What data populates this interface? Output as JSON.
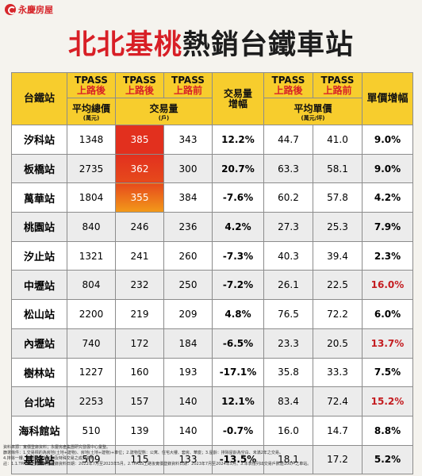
{
  "brand": {
    "logo_text": "永慶房屋"
  },
  "title": {
    "part1": "北北基桃",
    "part2": "熱銷台鐵車站"
  },
  "header": {
    "station": "台鐵站",
    "tpass_after": "TPASS",
    "tpass_after_sub": "上路後",
    "tpass_before": "TPASS",
    "tpass_before_sub": "上路前",
    "avg_total_price": "平均總價",
    "avg_total_price_unit": "(萬元)",
    "volume": "交易量",
    "volume_unit": "(戶)",
    "volume_growth": "交易量",
    "volume_growth_2": "增幅",
    "avg_unit_price": "平均單價",
    "avg_unit_price_unit": "(萬元/坪)",
    "unit_price_growth": "單價增幅"
  },
  "colors": {
    "accent_red": "#d81f26",
    "header_yellow": "#f7cd2d",
    "heat_high": "#e2301e",
    "heat_low": "#f39a1a"
  },
  "rows": [
    {
      "station": "汐科站",
      "avg_total": "1348",
      "vol_after": "385",
      "vol_before": "343",
      "vol_growth": "12.2%",
      "unit_after": "44.7",
      "unit_before": "41.0",
      "unit_growth": "9.0%",
      "highlight": true,
      "growth_red": false
    },
    {
      "station": "板橋站",
      "avg_total": "2735",
      "vol_after": "362",
      "vol_before": "300",
      "vol_growth": "20.7%",
      "unit_after": "63.3",
      "unit_before": "58.1",
      "unit_growth": "9.0%",
      "highlight": true,
      "growth_red": false
    },
    {
      "station": "萬華站",
      "avg_total": "1804",
      "vol_after": "355",
      "vol_before": "384",
      "vol_growth": "-7.6%",
      "unit_after": "60.2",
      "unit_before": "57.8",
      "unit_growth": "4.2%",
      "highlight": true,
      "growth_red": false
    },
    {
      "station": "桃園站",
      "avg_total": "840",
      "vol_after": "246",
      "vol_before": "236",
      "vol_growth": "4.2%",
      "unit_after": "27.3",
      "unit_before": "25.3",
      "unit_growth": "7.9%",
      "highlight": false,
      "growth_red": false
    },
    {
      "station": "汐止站",
      "avg_total": "1321",
      "vol_after": "241",
      "vol_before": "260",
      "vol_growth": "-7.3%",
      "unit_after": "40.3",
      "unit_before": "39.4",
      "unit_growth": "2.3%",
      "highlight": false,
      "growth_red": false
    },
    {
      "station": "中壢站",
      "avg_total": "804",
      "vol_after": "232",
      "vol_before": "250",
      "vol_growth": "-7.2%",
      "unit_after": "26.1",
      "unit_before": "22.5",
      "unit_growth": "16.0%",
      "highlight": false,
      "growth_red": true
    },
    {
      "station": "松山站",
      "avg_total": "2200",
      "vol_after": "219",
      "vol_before": "209",
      "vol_growth": "4.8%",
      "unit_after": "76.5",
      "unit_before": "72.2",
      "unit_growth": "6.0%",
      "highlight": false,
      "growth_red": false
    },
    {
      "station": "內壢站",
      "avg_total": "740",
      "vol_after": "172",
      "vol_before": "184",
      "vol_growth": "-6.5%",
      "unit_after": "23.3",
      "unit_before": "20.5",
      "unit_growth": "13.7%",
      "highlight": false,
      "growth_red": true
    },
    {
      "station": "樹林站",
      "avg_total": "1227",
      "vol_after": "160",
      "vol_before": "193",
      "vol_growth": "-17.1%",
      "unit_after": "35.8",
      "unit_before": "33.3",
      "unit_growth": "7.5%",
      "highlight": false,
      "growth_red": false
    },
    {
      "station": "台北站",
      "avg_total": "2253",
      "vol_after": "157",
      "vol_before": "140",
      "vol_growth": "12.1%",
      "unit_after": "83.4",
      "unit_before": "72.4",
      "unit_growth": "15.2%",
      "highlight": false,
      "growth_red": true
    },
    {
      "station": "海科館站",
      "avg_total": "510",
      "vol_after": "139",
      "vol_before": "140",
      "vol_growth": "-0.7%",
      "unit_after": "16.0",
      "unit_before": "14.7",
      "unit_growth": "8.8%",
      "highlight": false,
      "growth_red": false
    },
    {
      "station": "基隆站",
      "avg_total": "509",
      "vol_after": "115",
      "vol_before": "133",
      "vol_growth": "-13.5%",
      "unit_after": "18.1",
      "unit_before": "17.2",
      "unit_growth": "5.2%",
      "highlight": false,
      "growth_red": false
    }
  ],
  "notes": {
    "line1": "資料來源：實價登錄資料；永慶房產集團研究發展中心彙整。",
    "line2": "篩選條件：1.交易標的為房地(土地+建物)、房地(土地+建物)+車位；2.建物型態：公寓、住宅大樓、套房、華廈；3.屋齡：排除屋齡為空白、未滿2年之交易。",
    "line3": "4.排除一樓、主要用途非住家及特殊交易之成交資料。",
    "line4": "註：1.1.TPASS上路前實價登錄資料日期：2022年7月至2023年5月。2.TPASS上路後實價登錄資料日期：2023年7月至2024年5月。3.本表僅列出交易戶數逾100戶之車站。"
  }
}
